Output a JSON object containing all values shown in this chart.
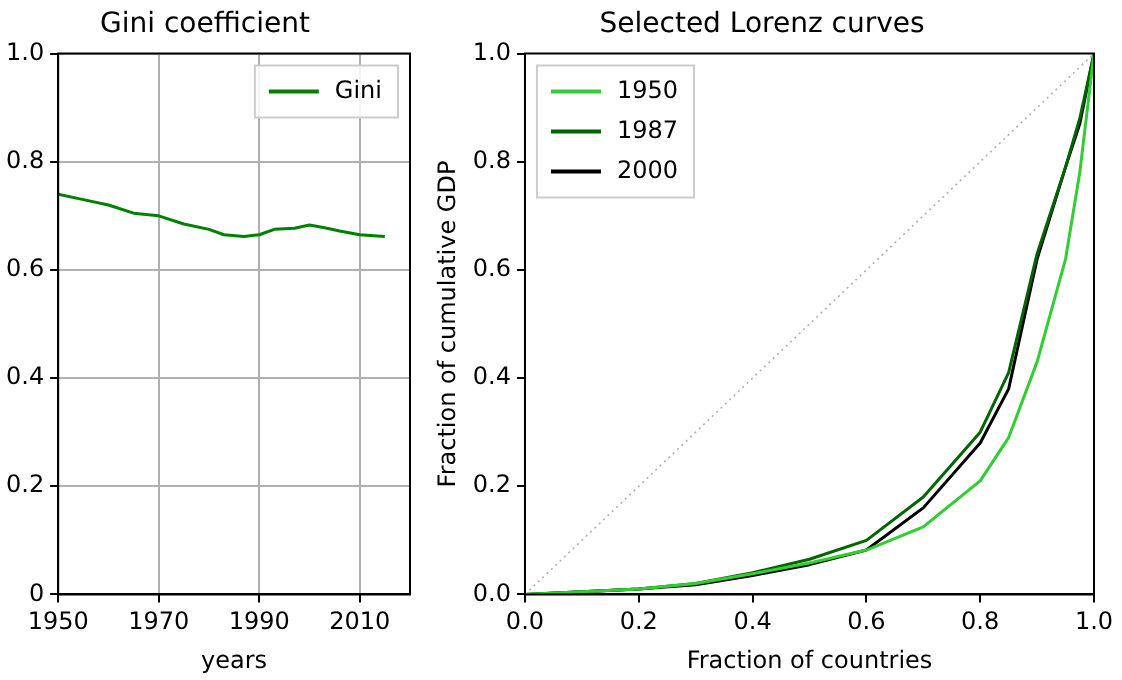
{
  "chart_data": [
    {
      "type": "line",
      "title": "Gini coefficient",
      "xlabel": "years",
      "x": [
        1950,
        1955,
        1960,
        1965,
        1970,
        1975,
        1980,
        1983,
        1987,
        1990,
        1993,
        1997,
        2000,
        2003,
        2006,
        2010,
        2015
      ],
      "series": [
        {
          "name": "Gini",
          "color": "#008000",
          "values": [
            0.74,
            0.73,
            0.72,
            0.705,
            0.7,
            0.685,
            0.675,
            0.665,
            0.662,
            0.665,
            0.675,
            0.677,
            0.683,
            0.678,
            0.672,
            0.665,
            0.662
          ]
        }
      ],
      "xlim": [
        1950,
        2020
      ],
      "xticks": [
        1950,
        1970,
        1990,
        2010
      ],
      "ylim": [
        0,
        1
      ],
      "yticks": [
        0,
        {
          "value": 0.2,
          "label": "0.2"
        },
        {
          "value": 0.4,
          "label": "0.4"
        },
        {
          "value": 0.6,
          "label": "0.6"
        },
        {
          "value": 0.8,
          "label": "0.8"
        },
        {
          "value": 1,
          "label": "1.0"
        }
      ],
      "grid": true,
      "legend": "top right"
    },
    {
      "type": "line",
      "title": "Selected Lorenz curves",
      "xlabel": "Fraction of countries",
      "ylabel": "Fraction of cumulative GDP",
      "x": [
        0,
        0.1,
        0.2,
        0.3,
        0.4,
        0.5,
        0.6,
        0.7,
        0.8,
        0.85,
        0.9,
        0.95,
        0.975,
        1
      ],
      "series": [
        {
          "type": "line",
          "color": "#b0b0b0",
          "line_style": "dotted",
          "x": [
            0,
            1
          ],
          "values": [
            0,
            1
          ]
        },
        {
          "name": "1950",
          "color": "#32cd32",
          "values": [
            0,
            0.005,
            0.01,
            0.02,
            0.038,
            0.058,
            0.082,
            0.125,
            0.21,
            0.29,
            0.43,
            0.62,
            0.78,
            1
          ]
        },
        {
          "name": "1987",
          "color": "#006400",
          "values": [
            0,
            0.005,
            0.01,
            0.02,
            0.04,
            0.065,
            0.1,
            0.18,
            0.3,
            0.41,
            0.63,
            0.79,
            0.88,
            1
          ]
        },
        {
          "name": "2000",
          "color": "#000000",
          "values": [
            0,
            0.005,
            0.01,
            0.018,
            0.035,
            0.055,
            0.082,
            0.16,
            0.28,
            0.38,
            0.62,
            0.79,
            0.87,
            1
          ]
        }
      ],
      "xlim": [
        0,
        1
      ],
      "xticks": [
        {
          "value": 0,
          "label": "0.0"
        },
        {
          "value": 0.2,
          "label": "0.2"
        },
        {
          "value": 0.4,
          "label": "0.4"
        },
        {
          "value": 0.6,
          "label": "0.6"
        },
        {
          "value": 0.8,
          "label": "0.8"
        },
        {
          "value": 1,
          "label": "1.0"
        }
      ],
      "ylim": [
        0,
        1
      ],
      "yticks": [
        {
          "value": 0,
          "label": "0.0"
        },
        {
          "value": 0.2,
          "label": "0.2"
        },
        {
          "value": 0.4,
          "label": "0.4"
        },
        {
          "value": 0.6,
          "label": "0.6"
        },
        {
          "value": 0.8,
          "label": "0.8"
        },
        {
          "value": 1,
          "label": "1.0"
        }
      ],
      "grid": false,
      "legend": "top left"
    }
  ]
}
